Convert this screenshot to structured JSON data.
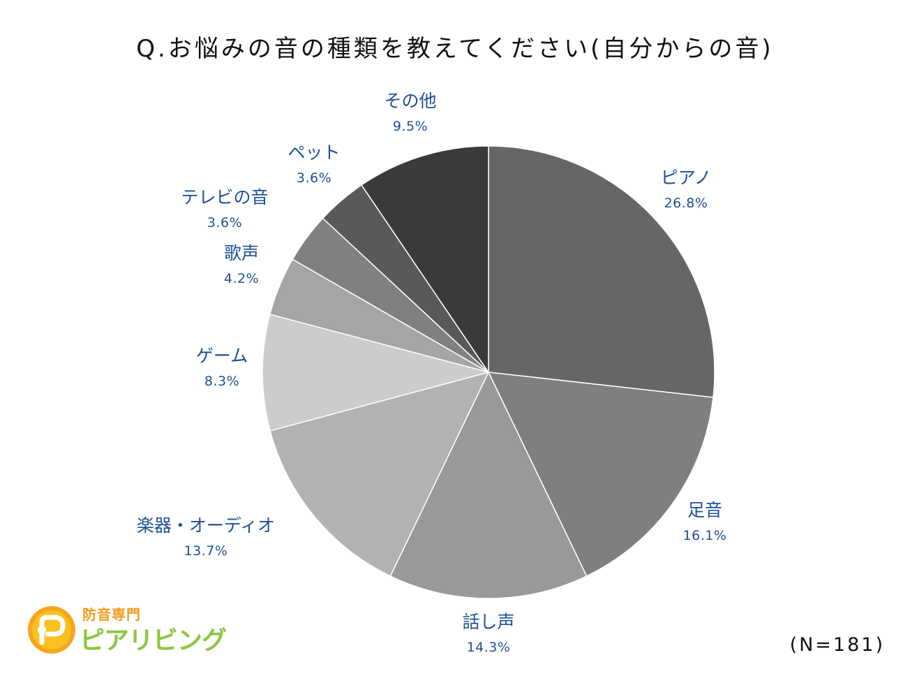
{
  "title": "Q.お悩みの音の種類を教えてください(自分からの音)",
  "sample_size": "(N=181)",
  "brand": {
    "tagline": "防音専門",
    "name": "ピアリビング"
  },
  "chart_data": {
    "type": "pie",
    "title": "Q.お悩みの音の種類を教えてください(自分からの音)",
    "start": "12 o'clock, clockwise",
    "slices": [
      {
        "label": "ピアノ",
        "value": 26.8,
        "value_label": "26.8%",
        "color": "#666666"
      },
      {
        "label": "足音",
        "value": 16.1,
        "value_label": "16.1%",
        "color": "#7f7f7f"
      },
      {
        "label": "話し声",
        "value": 14.3,
        "value_label": "14.3%",
        "color": "#999999"
      },
      {
        "label": "楽器・オーディオ",
        "value": 13.7,
        "value_label": "13.7%",
        "color": "#b2b2b2"
      },
      {
        "label": "ゲーム",
        "value": 8.3,
        "value_label": "8.3%",
        "color": "#cccccc"
      },
      {
        "label": "歌声",
        "value": 4.2,
        "value_label": "4.2%",
        "color": "#a5a5a5"
      },
      {
        "label": "テレビの音",
        "value": 3.6,
        "value_label": "3.6%",
        "color": "#808080"
      },
      {
        "label": "ペット",
        "value": 3.6,
        "value_label": "3.6%",
        "color": "#595959"
      },
      {
        "label": "その他",
        "value": 9.5,
        "value_label": "9.5%",
        "color": "#3a3a3a"
      }
    ],
    "label_color": "#1f4f95"
  }
}
